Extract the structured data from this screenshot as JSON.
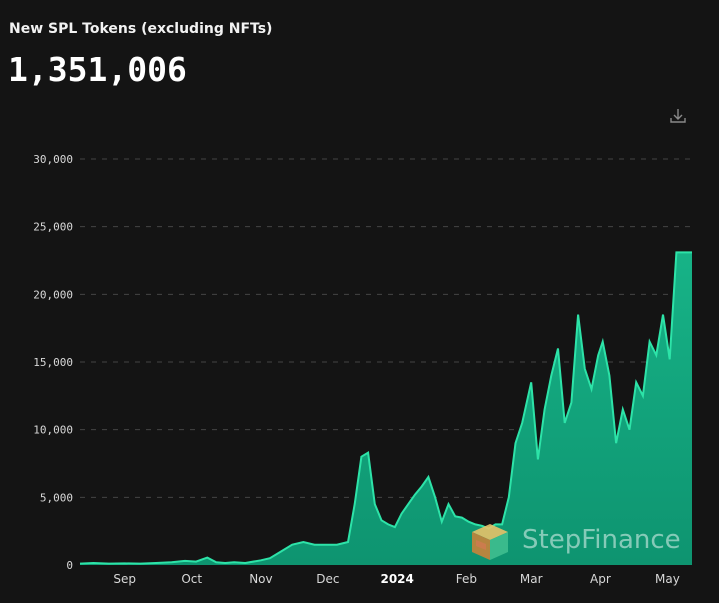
{
  "header": {
    "title": "New SPL Tokens (excluding NFTs)",
    "total": "1,351,006",
    "download_icon": "download-icon"
  },
  "watermark": {
    "text": "StepFinance",
    "icon": "stepfinance-logo-icon"
  },
  "colors": {
    "area_fill": "#0f9f7a",
    "line": "#2de3a8",
    "background": "#141414",
    "grid": "#444444"
  },
  "chart_data": {
    "type": "area",
    "title": "New SPL Tokens (excluding NFTs)",
    "xlabel": "",
    "ylabel": "",
    "ylim": [
      0,
      30000
    ],
    "yticks": [
      "0",
      "5,000",
      "10,000",
      "15,000",
      "20,000",
      "25,000",
      "30,000"
    ],
    "ytick_values": [
      0,
      5000,
      10000,
      15000,
      20000,
      25000,
      30000
    ],
    "grid": "horizontal dashed",
    "xtick_labels": [
      {
        "label": "Sep",
        "date": "2023-09-01"
      },
      {
        "label": "Oct",
        "date": "2023-10-01"
      },
      {
        "label": "Nov",
        "date": "2023-11-01"
      },
      {
        "label": "Dec",
        "date": "2023-12-01"
      },
      {
        "label": "2024",
        "date": "2024-01-01",
        "bold": true
      },
      {
        "label": "Feb",
        "date": "2024-02-01"
      },
      {
        "label": "Mar",
        "date": "2024-03-01"
      },
      {
        "label": "Apr",
        "date": "2024-04-01"
      },
      {
        "label": "May",
        "date": "2024-05-01"
      }
    ],
    "x_range": [
      "2023-08-12",
      "2024-05-12"
    ],
    "series": [
      {
        "x": [
          "2023-08-12",
          "2023-08-18",
          "2023-08-25",
          "2023-09-01",
          "2023-09-08",
          "2023-09-15",
          "2023-09-22",
          "2023-09-28",
          "2023-10-03",
          "2023-10-08",
          "2023-10-12",
          "2023-10-16",
          "2023-10-20",
          "2023-10-25",
          "2023-11-01",
          "2023-11-05",
          "2023-11-10",
          "2023-11-15",
          "2023-11-20",
          "2023-11-25",
          "2023-12-01",
          "2023-12-05",
          "2023-12-10",
          "2023-12-13",
          "2023-12-16",
          "2023-12-19",
          "2023-12-22",
          "2023-12-25",
          "2023-12-28",
          "2023-12-31",
          "2024-01-03",
          "2024-01-06",
          "2024-01-09",
          "2024-01-12",
          "2024-01-15",
          "2024-01-18",
          "2024-01-21",
          "2024-01-24",
          "2024-01-27",
          "2024-01-30",
          "2024-02-02",
          "2024-02-05",
          "2024-02-08",
          "2024-02-11",
          "2024-02-14",
          "2024-02-17",
          "2024-02-20",
          "2024-02-23",
          "2024-02-26",
          "2024-03-01",
          "2024-03-04",
          "2024-03-07",
          "2024-03-10",
          "2024-03-13",
          "2024-03-16",
          "2024-03-19",
          "2024-03-22",
          "2024-03-25",
          "2024-03-28",
          "2024-03-31",
          "2024-04-02",
          "2024-04-05",
          "2024-04-08",
          "2024-04-11",
          "2024-04-14",
          "2024-04-17",
          "2024-04-20",
          "2024-04-23",
          "2024-04-26",
          "2024-04-29",
          "2024-05-02",
          "2024-05-05",
          "2024-05-07",
          "2024-05-09",
          "2024-05-10",
          "2024-05-11",
          "2024-05-12"
        ],
        "y": [
          100,
          150,
          100,
          120,
          100,
          150,
          200,
          300,
          250,
          550,
          200,
          150,
          200,
          150,
          350,
          500,
          1000,
          1500,
          1700,
          1500,
          1500,
          1500,
          1700,
          4500,
          8000,
          8300,
          4500,
          3300,
          3000,
          2800,
          3800,
          4500,
          5200,
          5800,
          6500,
          5000,
          3200,
          4500,
          3600,
          3500,
          3200,
          3000,
          2900,
          2700,
          3000,
          3000,
          5000,
          9000,
          10500,
          13500,
          7800,
          11500,
          14000,
          16000,
          10500,
          12000,
          18500,
          14500,
          13000,
          15500,
          16500,
          14000,
          9000,
          11500,
          10000,
          13500,
          12500,
          16500,
          15500,
          18500,
          15200,
          23100,
          23100,
          23100,
          23100,
          23100,
          23100
        ]
      }
    ]
  }
}
